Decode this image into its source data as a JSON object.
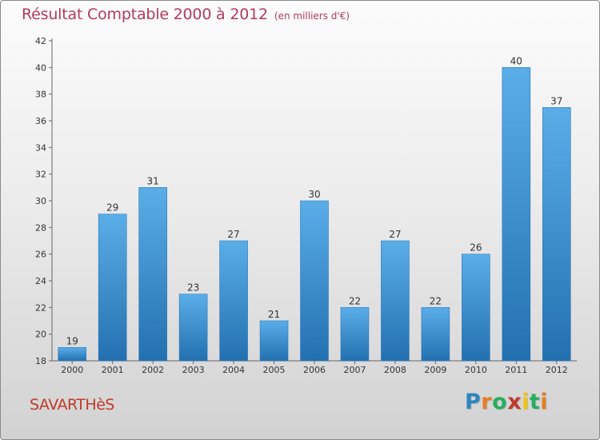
{
  "title": "Résultat Comptable 2000 à 2012",
  "unit_label": "(en milliers d'€)",
  "commune": "SAVARTHèS",
  "logo": {
    "letters": [
      "P",
      "r",
      "o",
      "x",
      "i",
      "t",
      "i"
    ],
    "colors": [
      "#2e86c1",
      "#e67e22",
      "#27ae60",
      "#c0392b",
      "#f1c40f",
      "#27ae60",
      "#e67e22"
    ]
  },
  "colors": {
    "bar": "#3a8fd4",
    "title": "#b23a5a",
    "commune": "#c0392b"
  },
  "chart_data": {
    "type": "bar",
    "title": "Résultat Comptable 2000 à 2012",
    "ylabel": "(en milliers d'€)",
    "xlabel": "",
    "categories": [
      "2000",
      "2001",
      "2002",
      "2003",
      "2004",
      "2005",
      "2006",
      "2007",
      "2008",
      "2009",
      "2010",
      "2011",
      "2012"
    ],
    "values": [
      19,
      29,
      31,
      23,
      27,
      21,
      30,
      22,
      27,
      22,
      26,
      40,
      37
    ],
    "ylim": [
      18,
      42
    ],
    "yticks": [
      18,
      20,
      22,
      24,
      26,
      28,
      30,
      32,
      34,
      36,
      38,
      40,
      42
    ],
    "grid": false,
    "legend": "none"
  }
}
